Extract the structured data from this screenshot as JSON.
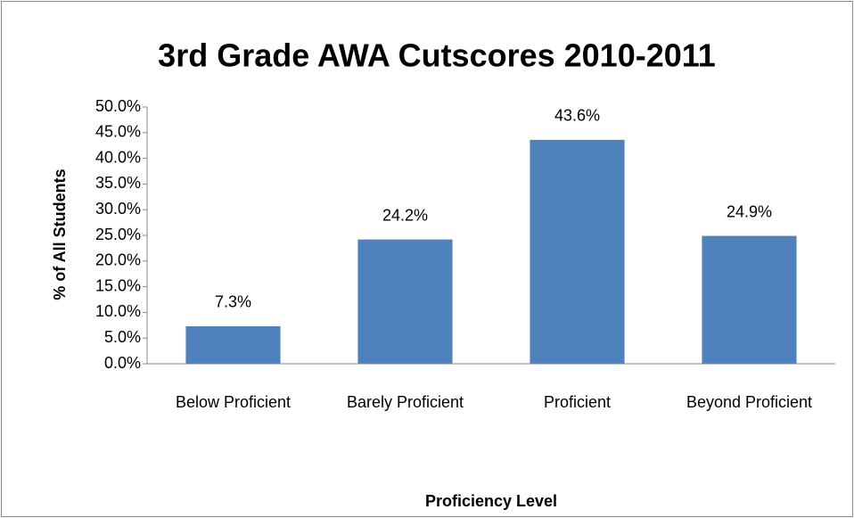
{
  "chart_data": {
    "type": "bar",
    "title": "3rd Grade AWA Cutscores 2010-2011",
    "y_label": "% of All Students",
    "x_label": "Proficiency Level",
    "categories": [
      "Below Proficient",
      "Barely Proficient",
      "Proficient",
      "Beyond Proficient"
    ],
    "values": [
      7.3,
      24.2,
      43.6,
      24.9
    ],
    "value_labels": [
      "7.3%",
      "24.2%",
      "43.6%",
      "24.9%"
    ],
    "color": "#4f81bd",
    "ylim": [
      0,
      50
    ],
    "yticks": [
      {
        "value": 0,
        "label": "0.0%"
      },
      {
        "value": 5,
        "label": "5.0%"
      },
      {
        "value": 10,
        "label": "10.0%"
      },
      {
        "value": 15,
        "label": "15.0%"
      },
      {
        "value": 20,
        "label": "20.0%"
      },
      {
        "value": 25,
        "label": "25.0%"
      },
      {
        "value": 30,
        "label": "30.0%"
      },
      {
        "value": 35,
        "label": "35.0%"
      },
      {
        "value": 40,
        "label": "40.0%"
      },
      {
        "value": 45,
        "label": "45.0%"
      },
      {
        "value": 50,
        "label": "50.0%"
      }
    ],
    "grid": false
  }
}
